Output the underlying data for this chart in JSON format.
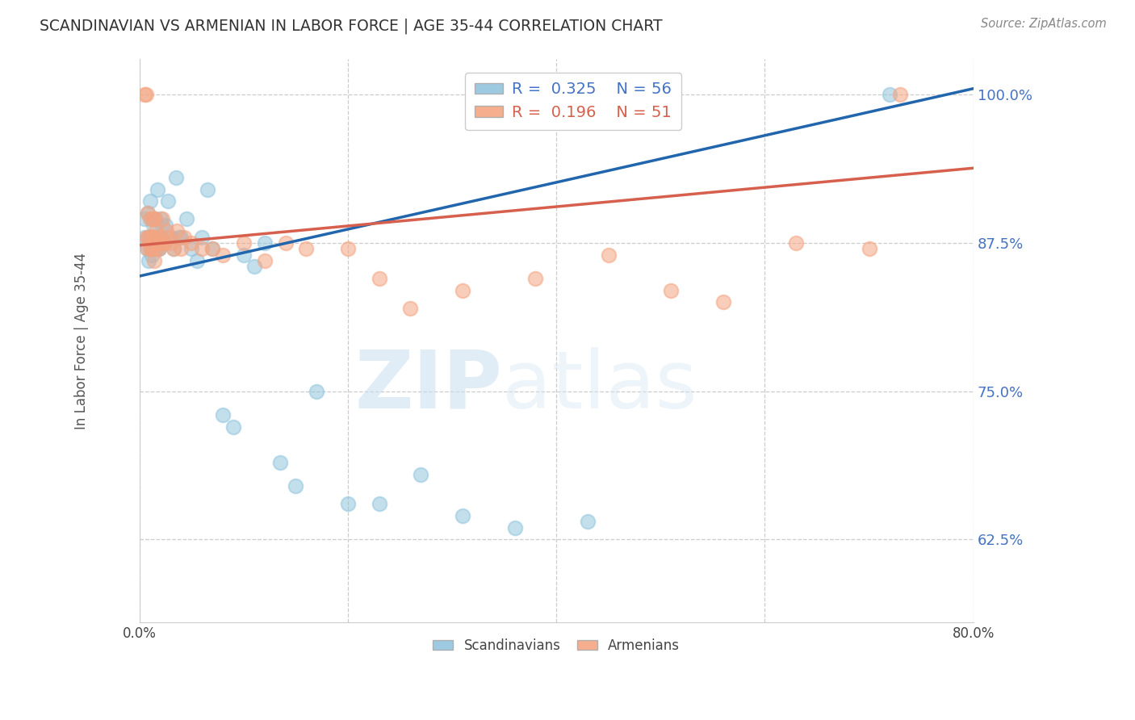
{
  "title": "SCANDINAVIAN VS ARMENIAN IN LABOR FORCE | AGE 35-44 CORRELATION CHART",
  "source_text": "Source: ZipAtlas.com",
  "ylabel": "In Labor Force | Age 35-44",
  "ytick_labels": [
    "100.0%",
    "87.5%",
    "75.0%",
    "62.5%"
  ],
  "ytick_values": [
    1.0,
    0.875,
    0.75,
    0.625
  ],
  "xlim": [
    0.0,
    0.8
  ],
  "ylim": [
    0.555,
    1.03
  ],
  "legend_blue_r": "0.325",
  "legend_blue_n": "56",
  "legend_pink_r": "0.196",
  "legend_pink_n": "51",
  "blue_color": "#92c5de",
  "pink_color": "#f4a582",
  "blue_fill_alpha": 0.55,
  "pink_fill_alpha": 0.55,
  "blue_line_color": "#2166ac",
  "pink_line_color": "#d6604d",
  "blue_label": "Scandinavians",
  "pink_label": "Armenians",
  "watermark_zip": "ZIP",
  "watermark_atlas": "atlas",
  "blue_x": [
    0.005,
    0.005,
    0.007,
    0.008,
    0.008,
    0.009,
    0.01,
    0.01,
    0.01,
    0.011,
    0.011,
    0.012,
    0.012,
    0.013,
    0.013,
    0.014,
    0.014,
    0.015,
    0.015,
    0.016,
    0.016,
    0.017,
    0.018,
    0.019,
    0.02,
    0.021,
    0.022,
    0.023,
    0.025,
    0.027,
    0.03,
    0.033,
    0.035,
    0.038,
    0.04,
    0.045,
    0.05,
    0.055,
    0.06,
    0.065,
    0.07,
    0.08,
    0.09,
    0.1,
    0.11,
    0.12,
    0.135,
    0.15,
    0.17,
    0.2,
    0.23,
    0.27,
    0.31,
    0.36,
    0.43,
    0.72
  ],
  "blue_y": [
    0.88,
    0.895,
    0.87,
    0.9,
    0.88,
    0.86,
    0.91,
    0.88,
    0.87,
    0.895,
    0.875,
    0.865,
    0.88,
    0.88,
    0.89,
    0.875,
    0.87,
    0.88,
    0.895,
    0.875,
    0.87,
    0.92,
    0.87,
    0.87,
    0.895,
    0.88,
    0.89,
    0.875,
    0.89,
    0.91,
    0.88,
    0.87,
    0.93,
    0.88,
    0.88,
    0.895,
    0.87,
    0.86,
    0.88,
    0.92,
    0.87,
    0.73,
    0.72,
    0.865,
    0.855,
    0.875,
    0.69,
    0.67,
    0.75,
    0.655,
    0.655,
    0.68,
    0.645,
    0.635,
    0.64,
    1.0
  ],
  "pink_x": [
    0.005,
    0.006,
    0.007,
    0.008,
    0.008,
    0.009,
    0.01,
    0.01,
    0.011,
    0.011,
    0.012,
    0.013,
    0.013,
    0.014,
    0.014,
    0.015,
    0.015,
    0.016,
    0.017,
    0.018,
    0.019,
    0.02,
    0.021,
    0.022,
    0.024,
    0.026,
    0.028,
    0.03,
    0.033,
    0.036,
    0.04,
    0.043,
    0.05,
    0.06,
    0.07,
    0.08,
    0.1,
    0.12,
    0.14,
    0.16,
    0.2,
    0.23,
    0.26,
    0.31,
    0.38,
    0.45,
    0.51,
    0.56,
    0.63,
    0.7,
    0.73
  ],
  "pink_y": [
    1.0,
    1.0,
    0.88,
    0.9,
    0.87,
    0.88,
    0.895,
    0.875,
    0.87,
    0.88,
    0.87,
    0.895,
    0.88,
    0.86,
    0.88,
    0.895,
    0.87,
    0.885,
    0.875,
    0.875,
    0.87,
    0.88,
    0.875,
    0.895,
    0.875,
    0.885,
    0.88,
    0.875,
    0.87,
    0.885,
    0.87,
    0.88,
    0.875,
    0.87,
    0.87,
    0.865,
    0.875,
    0.86,
    0.875,
    0.87,
    0.87,
    0.845,
    0.82,
    0.835,
    0.845,
    0.865,
    0.835,
    0.825,
    0.875,
    0.87,
    1.0
  ],
  "blue_line_x0": 0.0,
  "blue_line_x1": 0.8,
  "blue_line_y0": 0.847,
  "blue_line_y1": 1.005,
  "pink_line_x0": 0.0,
  "pink_line_x1": 0.8,
  "pink_line_y0": 0.873,
  "pink_line_y1": 0.938
}
